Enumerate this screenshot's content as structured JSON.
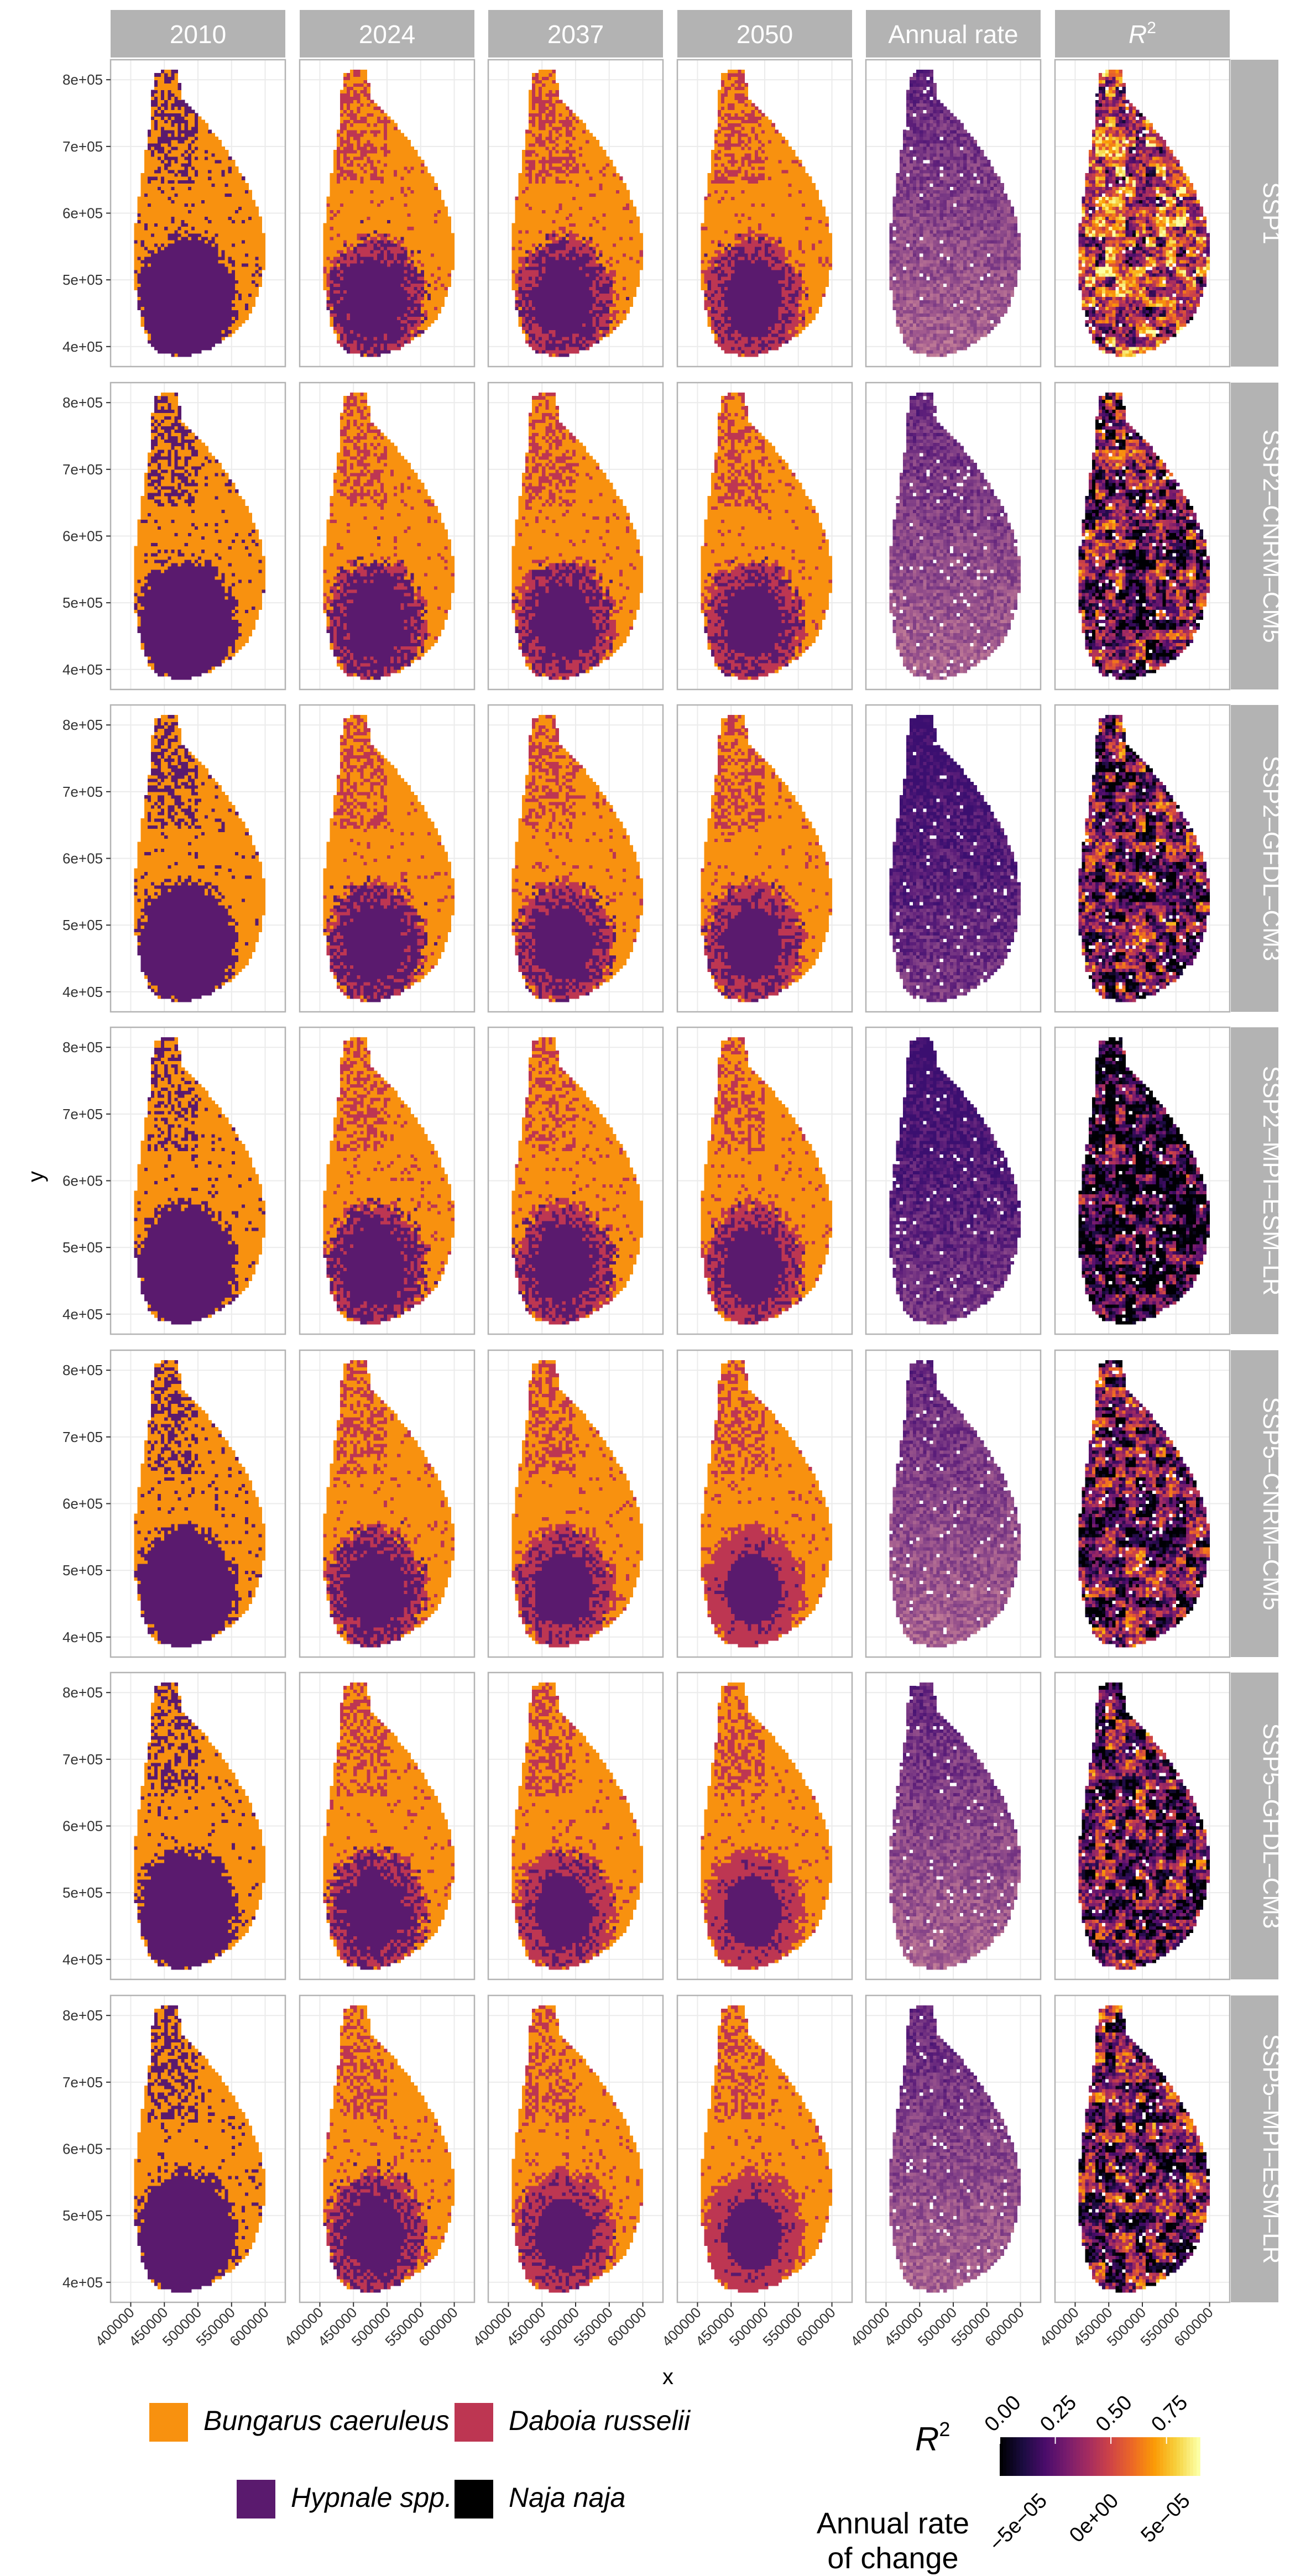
{
  "chart_data": {
    "type": "heatmap",
    "columns": [
      "2010",
      "2024",
      "2037",
      "2050",
      "Annual rate",
      "R"
    ],
    "r2_superscript": "2",
    "rows": [
      "SSP1",
      "SSP2–CNRM–CM5",
      "SSP2–GFDL–CM3",
      "SSP2–MPI–ESM–LR",
      "SSP5–CNRM–CM5",
      "SSP5–GFDL–CM3",
      "SSP5–MPI–ESM–LR"
    ],
    "xlabel": "x",
    "ylabel": "y",
    "x_ticks": [
      "400000",
      "450000",
      "500000",
      "550000",
      "600000"
    ],
    "y_ticks": [
      "4e+05",
      "5e+05",
      "6e+05",
      "7e+05",
      "8e+05"
    ],
    "x_tick_values": [
      400000,
      450000,
      500000,
      550000,
      600000
    ],
    "y_tick_values": [
      400000,
      500000,
      600000,
      700000,
      800000
    ],
    "xlim": [
      370000,
      630000
    ],
    "ylim": [
      370000,
      830000
    ],
    "species_legend": [
      {
        "name": "Bungarus caeruleus",
        "color": "#F8910F"
      },
      {
        "name": "Daboia russelii",
        "color": "#BD3652"
      },
      {
        "name": "Hypnale spp.",
        "color": "#5A1A6E"
      },
      {
        "name": "Naja naja",
        "color": "#000000"
      }
    ],
    "r2_legend": {
      "title": "R",
      "superscript": "2",
      "ticks": [
        "0.00",
        "0.25",
        "0.50",
        "0.75"
      ],
      "tick_values": [
        0,
        0.25,
        0.5,
        0.75
      ],
      "range": [
        0,
        0.9
      ]
    },
    "rate_legend": {
      "title_line1": "Annual rate",
      "title_line2": "of change",
      "ticks": [
        "−5e−05",
        "0e+00",
        "5e−05"
      ],
      "tick_values": [
        -5e-05,
        0,
        5e-05
      ],
      "range": [
        -7e-05,
        7e-05
      ]
    },
    "colors": {
      "strip_bg": "#B3B3B3",
      "panel_border": "#B3B3B3",
      "grid_major": "#EBEBEB",
      "bungarus": "#F8910F",
      "daboia": "#BD3652",
      "hypnale": "#5A1A6E",
      "naja": "#000000"
    }
  }
}
